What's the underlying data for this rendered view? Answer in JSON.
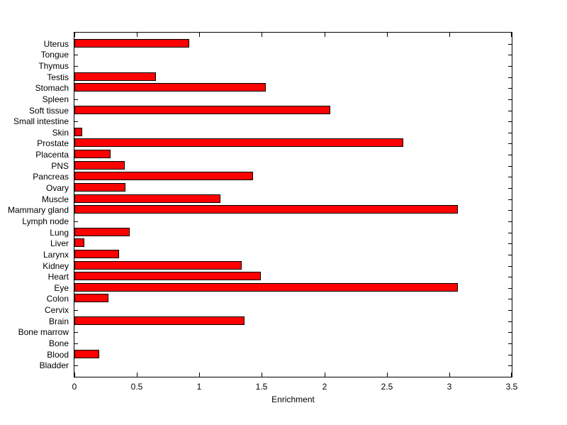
{
  "figure": {
    "background_color": "#ffffff",
    "axis_color": "#000000",
    "text_color": "#000000"
  },
  "chart_data": {
    "type": "bar",
    "orientation": "horizontal",
    "title": "",
    "xlabel": "Enrichment",
    "ylabel": "",
    "xlim": [
      0,
      3.5
    ],
    "xticks": [
      0,
      0.5,
      1,
      1.5,
      2,
      2.5,
      3,
      3.5
    ],
    "xtick_labels": [
      "0",
      "0.5",
      "1",
      "1.5",
      "2",
      "2.5",
      "3",
      "3.5"
    ],
    "grid": false,
    "legend": null,
    "bar_color": "#ff0000",
    "bar_edge_color": "#000000",
    "categories_top_to_bottom": [
      "Uterus",
      "Tongue",
      "Thymus",
      "Testis",
      "Stomach",
      "Spleen",
      "Soft tissue",
      "Small intestine",
      "Skin",
      "Prostate",
      "Placenta",
      "PNS",
      "Pancreas",
      "Ovary",
      "Muscle",
      "Mammary gland",
      "Lymph node",
      "Lung",
      "Liver",
      "Larynx",
      "Kidney",
      "Heart",
      "Eye",
      "Colon",
      "Cervix",
      "Brain",
      "Bone marrow",
      "Bone",
      "Blood",
      "Bladder"
    ],
    "values": [
      0.92,
      0,
      0,
      0.65,
      1.53,
      0,
      2.05,
      0,
      0.06,
      2.63,
      0.29,
      0.4,
      1.43,
      0.41,
      1.17,
      3.07,
      0,
      0.44,
      0.08,
      0.36,
      1.34,
      1.49,
      3.07,
      0.27,
      0,
      1.36,
      0,
      0,
      0.2,
      0
    ]
  }
}
